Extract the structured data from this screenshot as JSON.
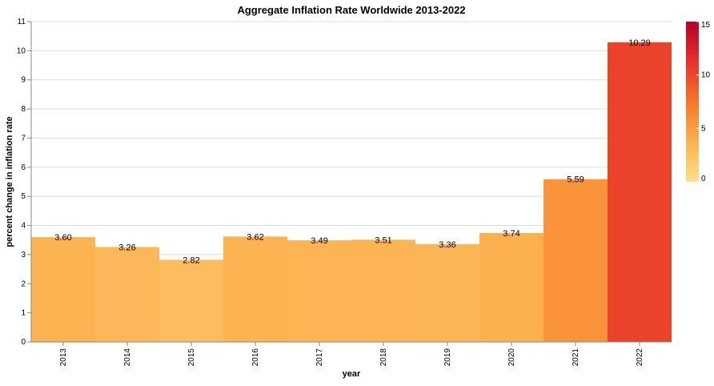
{
  "chart_data": {
    "type": "bar",
    "title": "Aggregate Inflation Rate Worldwide 2013-2022",
    "xlabel": "year",
    "ylabel": "percent change in inflation rate",
    "categories": [
      "2013",
      "2014",
      "2015",
      "2016",
      "2017",
      "2018",
      "2019",
      "2020",
      "2021",
      "2022"
    ],
    "values": [
      3.6,
      3.26,
      2.82,
      3.62,
      3.49,
      3.51,
      3.36,
      3.74,
      5.59,
      10.29
    ],
    "value_labels": [
      "3.60",
      "3.26",
      "2.82",
      "3.62",
      "3.49",
      "3.51",
      "3.36",
      "3.74",
      "5.59",
      "10.29"
    ],
    "ylim": [
      0,
      11
    ],
    "yticks": [
      "0",
      "1",
      "2",
      "3",
      "4",
      "5",
      "6",
      "7",
      "8",
      "9",
      "10",
      "11"
    ],
    "grid": true,
    "legend": {
      "type": "color-gradient",
      "placement": "right",
      "domain": [
        0,
        15
      ],
      "ticks": [
        "0",
        "5",
        "10",
        "15"
      ],
      "colors": [
        "#ffe08a",
        "#fcb150",
        "#f5762a",
        "#e8302a",
        "#b5002a"
      ]
    }
  }
}
